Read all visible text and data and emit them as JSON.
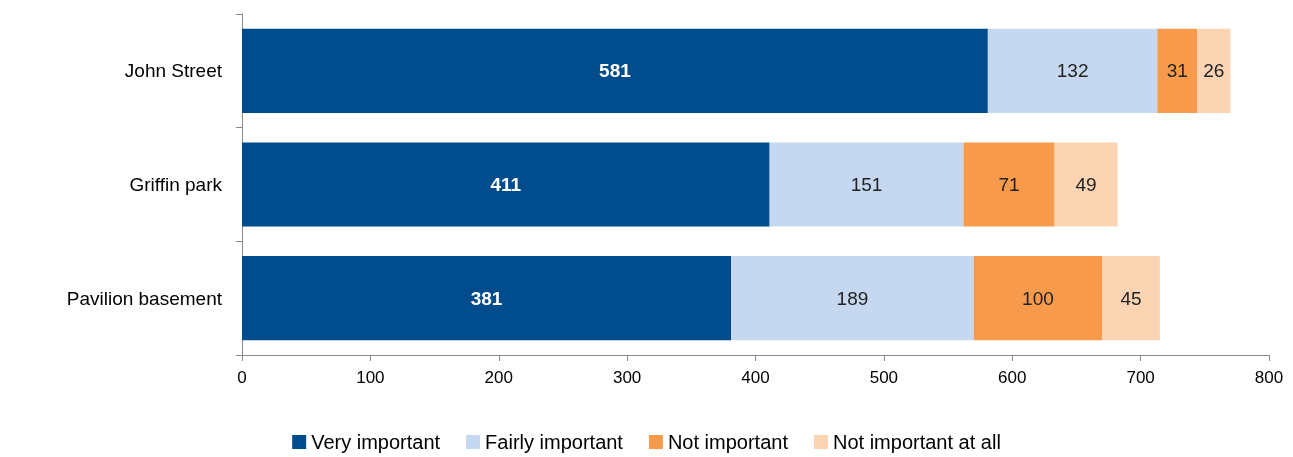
{
  "chart_data": {
    "type": "bar",
    "orientation": "horizontal",
    "stacked": true,
    "data_labels": true,
    "legend": "bottom",
    "grid": false,
    "categories": [
      "John Street",
      "Griffin park",
      "Pavilion basement"
    ],
    "series": [
      {
        "name": "Very important",
        "color": "#004c8c",
        "values": [
          581,
          411,
          381
        ]
      },
      {
        "name": "Fairly important",
        "color": "#c6d8f0",
        "values": [
          132,
          151,
          189
        ]
      },
      {
        "name": "Not important",
        "color": "#f79a4c",
        "values": [
          31,
          71,
          100
        ]
      },
      {
        "name": "Not important at all",
        "color": "#fbd4b4",
        "values": [
          26,
          49,
          45
        ]
      }
    ],
    "xlim": [
      0,
      800
    ],
    "xticks": [
      0,
      100,
      200,
      300,
      400,
      500,
      600,
      700,
      800
    ]
  }
}
